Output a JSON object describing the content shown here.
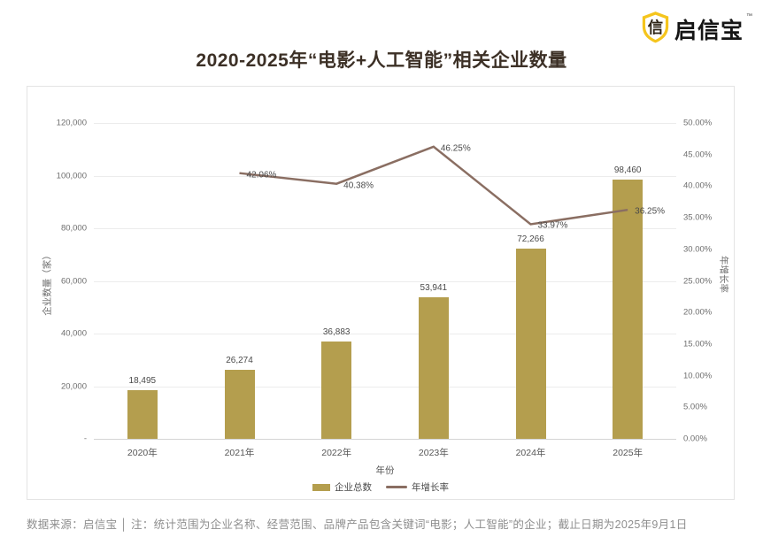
{
  "header": {
    "logo_text": "启信宝",
    "trademark": "™",
    "title": "2020-2025年“电影+人工智能”相关企业数量"
  },
  "colors": {
    "bar": "#b49e4e",
    "line": "#8a6e62",
    "logo_gold": "#f5c51d",
    "title_text": "#3c3026"
  },
  "chart_data": {
    "type": "bar+line combo",
    "categories": [
      "2020年",
      "2021年",
      "2022年",
      "2023年",
      "2024年",
      "2025年"
    ],
    "series": [
      {
        "name": "企业总数",
        "type": "bar",
        "axis": "left",
        "color": "#b49e4e",
        "values": [
          18495,
          26274,
          36883,
          53941,
          72266,
          98460
        ],
        "labels": [
          "18,495",
          "26,274",
          "36,883",
          "53,941",
          "72,266",
          "98,460"
        ]
      },
      {
        "name": "年增长率",
        "type": "line",
        "axis": "right",
        "color": "#8a6e62",
        "categories": [
          "2021年",
          "2022年",
          "2023年",
          "2024年",
          "2025年"
        ],
        "values": [
          42.06,
          40.38,
          46.25,
          33.97,
          36.25
        ],
        "labels": [
          "42.06%",
          "40.38%",
          "46.25%",
          "33.97%",
          "36.25%"
        ]
      }
    ],
    "left_axis": {
      "title": "企业数量（家）",
      "min": 0,
      "max": 120000,
      "ticks": [
        "120,000",
        "100,000",
        "80,000",
        "60,000",
        "40,000",
        "20,000",
        "-"
      ]
    },
    "right_axis": {
      "title": "年增长率",
      "min": 0,
      "max": 50,
      "ticks": [
        "50.00%",
        "45.00%",
        "40.00%",
        "35.00%",
        "30.00%",
        "25.00%",
        "20.00%",
        "15.00%",
        "10.00%",
        "5.00%",
        "0.00%"
      ]
    },
    "x_axis": {
      "title": "年份"
    },
    "legend": [
      {
        "label": "企业总数",
        "swatch": "bar",
        "color": "#b49e4e"
      },
      {
        "label": "年增长率",
        "swatch": "line",
        "color": "#8a6e62"
      }
    ],
    "grid": true,
    "legend_position": "bottom"
  },
  "footer": {
    "text": "数据来源：启信宝 │ 注：统计范围为企业名称、经营范围、品牌产品包含关键词“电影；人工智能”的企业；截止日期为2025年9月1日"
  }
}
